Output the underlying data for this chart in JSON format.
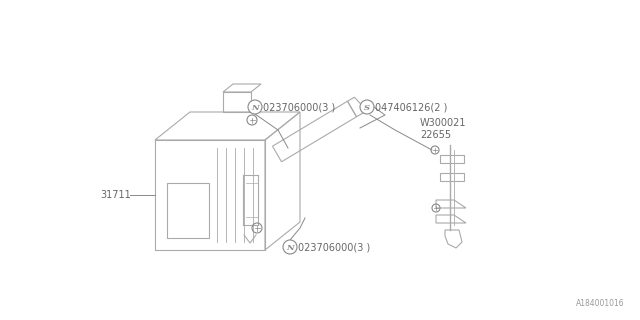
{
  "bg_color": "#ffffff",
  "lc": "#aaaaaa",
  "dc": "#888888",
  "tc": "#666666",
  "fig_width": 6.4,
  "fig_height": 3.2,
  "dpi": 100,
  "diagram_id": "A184001016",
  "labels": {
    "part_31711": "31711",
    "part_N_top": "023706000(3 )",
    "part_N_bot": "023706000(3 )",
    "part_S": "047406126(2 )",
    "part_W300021": "W300021",
    "part_22655": "22655"
  }
}
